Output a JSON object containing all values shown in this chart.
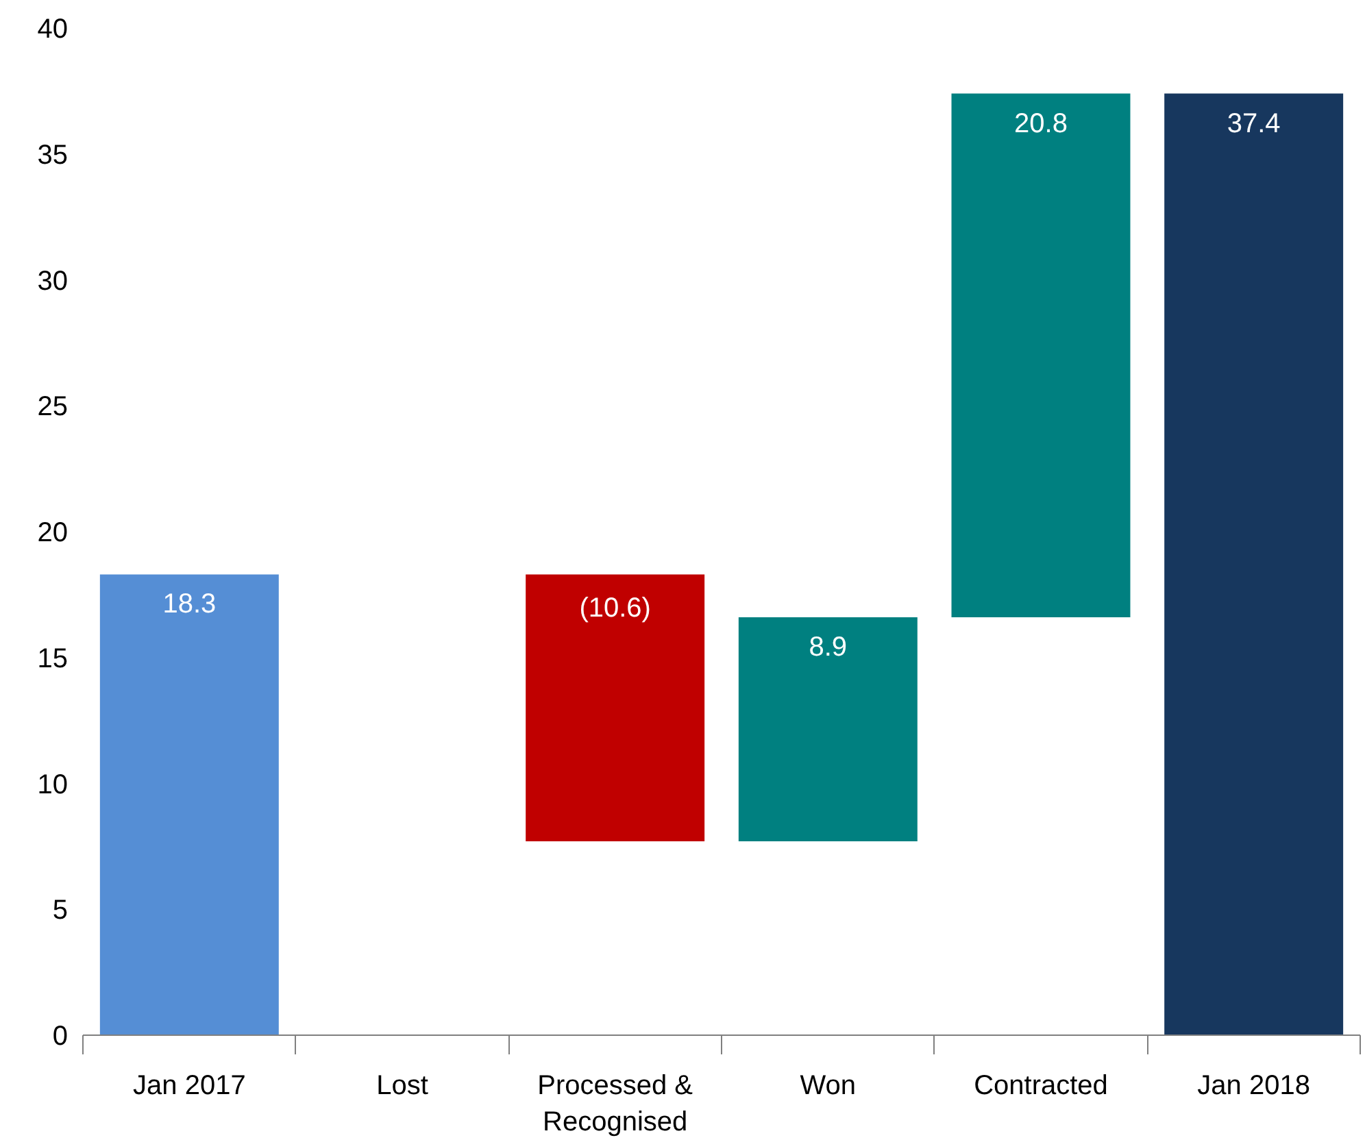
{
  "chart_data": {
    "type": "bar",
    "categories": [
      "Jan 2017",
      "Lost",
      "Processed & Recognised",
      "Won",
      "Contracted",
      "Jan 2018"
    ],
    "values": [
      18.3,
      null,
      -10.6,
      8.9,
      20.8,
      37.4
    ],
    "base": [
      0,
      null,
      18.3,
      7.7,
      16.6,
      0
    ],
    "colors": [
      "#558ed5",
      "#ffffff",
      "#c00000",
      "#008080",
      "#008080",
      "#17375e"
    ],
    "value_labels": [
      "18.3",
      null,
      "(10.6)",
      "8.9",
      "20.8",
      "37.4"
    ],
    "ylim": [
      0,
      40
    ],
    "yticks": [
      0,
      5,
      10,
      15,
      20,
      25,
      30,
      35,
      40
    ],
    "grid": false
  }
}
